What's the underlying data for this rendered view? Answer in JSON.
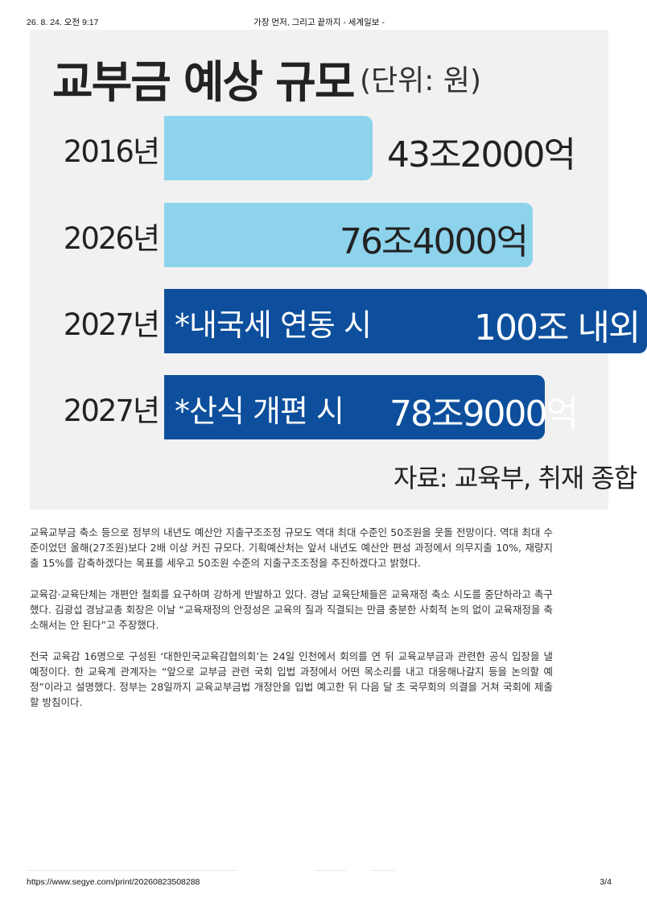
{
  "page_header": {
    "datetime": "26. 8. 24. 오전 9:17",
    "title": "가장 먼저, 그리고 끝까지 - 세계일보 -"
  },
  "chart_data": {
    "type": "bar",
    "title": "교부금 예상 규모",
    "unit_label": "(단위: 원)",
    "categories": [
      "2016년",
      "2026년",
      "2027년",
      "2027년"
    ],
    "notes": [
      "",
      "",
      "*내국세 연동 시",
      "*산식 개편 시"
    ],
    "values": [
      43.2,
      76.4,
      100,
      78.9
    ],
    "value_labels": [
      "43조2000억",
      "76조4000억",
      "100조 내외",
      "78조9000억"
    ],
    "value_unit": "조원",
    "bar_colors": [
      "#8dd3ec",
      "#8dd3ec",
      "#0d4f9c",
      "#0d4f9c"
    ],
    "source": "자료: 교육부, 취재 종합",
    "orientation": "horizontal"
  },
  "article": {
    "paragraphs": [
      "교육교부금 축소 등으로 정부의 내년도 예산안 지출구조조정 규모도 역대 최대 수준인 50조원을 웃돌 전망이다. 역대 최대 수준이었던 올해(27조원)보다 2배 이상 커진 규모다. 기획예산처는 앞서 내년도 예산안 편성 과정에서 의무지출 10%, 재량지출 15%를 감축하겠다는 목표를 세우고 50조원 수준의 지출구조조정을 추진하겠다고 밝혔다.",
      "교육감·교육단체는 개편안 철회를 요구하며 강하게 반발하고 있다. 경남 교육단체들은 교육재정 축소 시도를 중단하라고 촉구했다. 김광섭 경남교총 회장은 이날 “교육재정의 안정성은 교육의 질과 직결되는 만큼 충분한 사회적 논의 없이 교육재정을 축소해서는 안 된다”고 주장했다.",
      "전국 교육감 16명으로 구성된 ‘대한민국교육감협의회’는 24일 인천에서 회의를 연 뒤 교육교부금과 관련한 공식 입장을 낼 예정이다. 한 교육계 관계자는 “앞으로 교부금 관련 국회 입법 과정에서 어떤 목소리를 내고 대응해나갈지 등을 논의할 예정”이라고 설명했다. 정부는 28일까지 교육교부금법 개정안을 입법 예고한 뒤 다음 달 초 국무회의 의결을 거쳐 국회에 제출할 방침이다."
    ]
  },
  "page_footer": {
    "url": "https://www.segye.com/print/20260823508288",
    "page": "3/4"
  }
}
